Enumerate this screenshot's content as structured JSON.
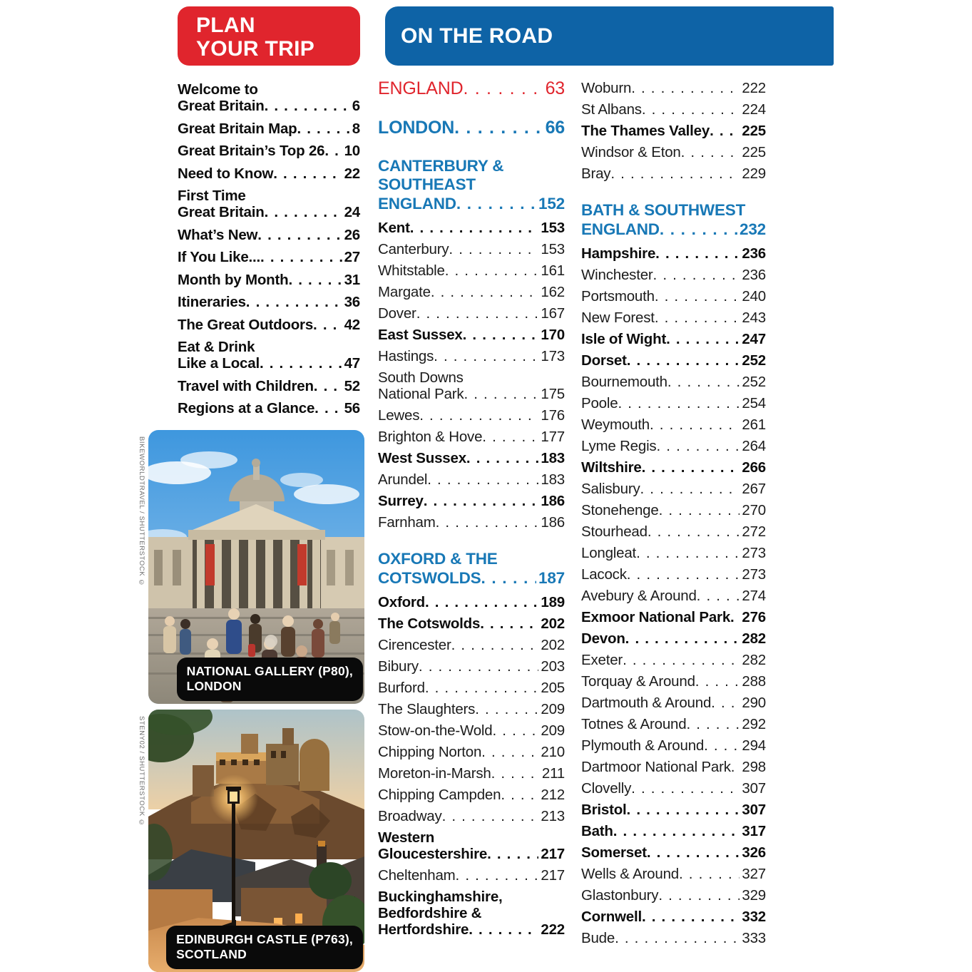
{
  "page": {
    "plan_header": {
      "line1": "PLAN",
      "line2": "YOUR TRIP"
    },
    "road_header": "ON THE ROAD"
  },
  "colors": {
    "red": "#e0252d",
    "header_blue": "#0e63a6",
    "section_blue": "#1878b6",
    "text": "#151515"
  },
  "plan_items": [
    {
      "style": "b",
      "lines": [
        "Welcome to",
        "Great Britain"
      ],
      "page": "6"
    },
    {
      "style": "b",
      "lines": [
        "Great Britain Map"
      ],
      "page": "8"
    },
    {
      "style": "b",
      "lines": [
        "Great Britain’s Top 26"
      ],
      "page": "10"
    },
    {
      "style": "b",
      "lines": [
        "Need to Know"
      ],
      "page": "22"
    },
    {
      "style": "b",
      "lines": [
        "First Time",
        "Great Britain"
      ],
      "page": "24"
    },
    {
      "style": "b",
      "lines": [
        "What’s New"
      ],
      "page": "26"
    },
    {
      "style": "b",
      "lines": [
        "If You Like..."
      ],
      "page": "27"
    },
    {
      "style": "b",
      "lines": [
        "Month by Month"
      ],
      "page": "31"
    },
    {
      "style": "b",
      "lines": [
        "Itineraries"
      ],
      "page": "36"
    },
    {
      "style": "b",
      "lines": [
        "The Great Outdoors"
      ],
      "page": "42"
    },
    {
      "style": "b",
      "lines": [
        "Eat & Drink",
        "Like a Local"
      ],
      "page": "47"
    },
    {
      "style": "b",
      "lines": [
        "Travel with Children"
      ],
      "page": "52"
    },
    {
      "style": "b",
      "lines": [
        "Regions at a Glance"
      ],
      "page": "56"
    }
  ],
  "road_mid": [
    {
      "style": "red",
      "big": true,
      "lines": [
        "ENGLAND"
      ],
      "page": "63"
    },
    {
      "style": "sec",
      "big": true,
      "lines": [
        "LONDON"
      ],
      "page": "66"
    },
    {
      "style": "sec",
      "lines": [
        "CANTERBURY &",
        "SOUTHEAST",
        "ENGLAND"
      ],
      "page": "152"
    },
    {
      "style": "b",
      "lines": [
        "Kent"
      ],
      "page": "153"
    },
    {
      "style": "n",
      "lines": [
        "Canterbury"
      ],
      "page": "153"
    },
    {
      "style": "n",
      "lines": [
        "Whitstable"
      ],
      "page": "161"
    },
    {
      "style": "n",
      "lines": [
        "Margate"
      ],
      "page": "162"
    },
    {
      "style": "n",
      "lines": [
        "Dover"
      ],
      "page": "167"
    },
    {
      "style": "b",
      "lines": [
        "East Sussex"
      ],
      "page": "170"
    },
    {
      "style": "n",
      "lines": [
        "Hastings"
      ],
      "page": "173"
    },
    {
      "style": "n",
      "lines": [
        "South Downs",
        "National Park"
      ],
      "page": "175"
    },
    {
      "style": "n",
      "lines": [
        "Lewes"
      ],
      "page": "176"
    },
    {
      "style": "n",
      "lines": [
        "Brighton & Hove"
      ],
      "page": "177"
    },
    {
      "style": "b",
      "lines": [
        "West Sussex"
      ],
      "page": "183"
    },
    {
      "style": "n",
      "lines": [
        "Arundel"
      ],
      "page": "183"
    },
    {
      "style": "b",
      "lines": [
        "Surrey"
      ],
      "page": "186"
    },
    {
      "style": "n",
      "lines": [
        "Farnham"
      ],
      "page": "186"
    },
    {
      "style": "sec",
      "lines": [
        "OXFORD & THE",
        "COTSWOLDS"
      ],
      "page": "187"
    },
    {
      "style": "b",
      "lines": [
        "Oxford"
      ],
      "page": "189"
    },
    {
      "style": "b",
      "lines": [
        "The Cotswolds"
      ],
      "page": "202"
    },
    {
      "style": "n",
      "lines": [
        "Cirencester"
      ],
      "page": "202"
    },
    {
      "style": "n",
      "lines": [
        "Bibury"
      ],
      "page": "203"
    },
    {
      "style": "n",
      "lines": [
        "Burford"
      ],
      "page": "205"
    },
    {
      "style": "n",
      "lines": [
        "The Slaughters"
      ],
      "page": "209"
    },
    {
      "style": "n",
      "lines": [
        "Stow-on-the-Wold"
      ],
      "page": "209"
    },
    {
      "style": "n",
      "lines": [
        "Chipping Norton"
      ],
      "page": "210"
    },
    {
      "style": "n",
      "lines": [
        "Moreton-in-Marsh"
      ],
      "page": "211"
    },
    {
      "style": "n",
      "lines": [
        "Chipping Campden"
      ],
      "page": "212"
    },
    {
      "style": "n",
      "lines": [
        "Broadway"
      ],
      "page": "213"
    },
    {
      "style": "b",
      "lines": [
        "Western",
        "Gloucestershire"
      ],
      "page": "217"
    },
    {
      "style": "n",
      "lines": [
        "Cheltenham"
      ],
      "page": "217"
    },
    {
      "style": "b",
      "lines": [
        "Buckinghamshire,",
        "Bedfordshire &",
        "Hertfordshire"
      ],
      "page": "222"
    }
  ],
  "road_right": [
    {
      "style": "n",
      "lines": [
        "Woburn"
      ],
      "page": "222"
    },
    {
      "style": "n",
      "lines": [
        "St Albans"
      ],
      "page": "224"
    },
    {
      "style": "b",
      "lines": [
        "The Thames Valley"
      ],
      "page": "225"
    },
    {
      "style": "n",
      "lines": [
        "Windsor & Eton"
      ],
      "page": "225"
    },
    {
      "style": "n",
      "lines": [
        "Bray"
      ],
      "page": "229"
    },
    {
      "style": "sec",
      "lines": [
        "BATH & SOUTHWEST",
        "ENGLAND"
      ],
      "page": "232"
    },
    {
      "style": "b",
      "lines": [
        "Hampshire"
      ],
      "page": "236"
    },
    {
      "style": "n",
      "lines": [
        "Winchester"
      ],
      "page": "236"
    },
    {
      "style": "n",
      "lines": [
        "Portsmouth"
      ],
      "page": "240"
    },
    {
      "style": "n",
      "lines": [
        "New Forest"
      ],
      "page": "243"
    },
    {
      "style": "b",
      "lines": [
        "Isle of Wight"
      ],
      "page": "247"
    },
    {
      "style": "b",
      "lines": [
        "Dorset"
      ],
      "page": "252"
    },
    {
      "style": "n",
      "lines": [
        "Bournemouth"
      ],
      "page": "252"
    },
    {
      "style": "n",
      "lines": [
        "Poole"
      ],
      "page": "254"
    },
    {
      "style": "n",
      "lines": [
        "Weymouth"
      ],
      "page": "261"
    },
    {
      "style": "n",
      "lines": [
        "Lyme Regis"
      ],
      "page": "264"
    },
    {
      "style": "b",
      "lines": [
        "Wiltshire"
      ],
      "page": "266"
    },
    {
      "style": "n",
      "lines": [
        "Salisbury"
      ],
      "page": "267"
    },
    {
      "style": "n",
      "lines": [
        "Stonehenge"
      ],
      "page": "270"
    },
    {
      "style": "n",
      "lines": [
        "Stourhead"
      ],
      "page": "272"
    },
    {
      "style": "n",
      "lines": [
        "Longleat"
      ],
      "page": "273"
    },
    {
      "style": "n",
      "lines": [
        "Lacock"
      ],
      "page": "273"
    },
    {
      "style": "n",
      "lines": [
        "Avebury & Around"
      ],
      "page": "274"
    },
    {
      "style": "b",
      "lines": [
        "Exmoor National Park"
      ],
      "page": "276"
    },
    {
      "style": "b",
      "lines": [
        "Devon"
      ],
      "page": "282"
    },
    {
      "style": "n",
      "lines": [
        "Exeter"
      ],
      "page": "282"
    },
    {
      "style": "n",
      "lines": [
        "Torquay & Around"
      ],
      "page": "288"
    },
    {
      "style": "n",
      "lines": [
        "Dartmouth & Around"
      ],
      "page": "290"
    },
    {
      "style": "n",
      "lines": [
        "Totnes & Around"
      ],
      "page": "292"
    },
    {
      "style": "n",
      "lines": [
        "Plymouth & Around"
      ],
      "page": "294"
    },
    {
      "style": "n",
      "lines": [
        "Dartmoor National Park"
      ],
      "page": "298"
    },
    {
      "style": "n",
      "lines": [
        "Clovelly"
      ],
      "page": "307"
    },
    {
      "style": "b",
      "lines": [
        "Bristol"
      ],
      "page": "307"
    },
    {
      "style": "b",
      "lines": [
        "Bath"
      ],
      "page": "317"
    },
    {
      "style": "b",
      "lines": [
        "Somerset"
      ],
      "page": "326"
    },
    {
      "style": "n",
      "lines": [
        "Wells & Around"
      ],
      "page": "327"
    },
    {
      "style": "n",
      "lines": [
        "Glastonbury"
      ],
      "page": "329"
    },
    {
      "style": "b",
      "lines": [
        "Cornwell"
      ],
      "page": "332"
    },
    {
      "style": "n",
      "lines": [
        "Bude"
      ],
      "page": "333"
    }
  ],
  "photos": [
    {
      "name": "national-gallery",
      "caption_lines": [
        "NATIONAL GALLERY (P80),",
        "LONDON"
      ],
      "credit": "BIKEWORLDTRAVEL / SHUTTERSTOCK ©"
    },
    {
      "name": "edinburgh-castle",
      "caption_lines": [
        "EDINBURGH CASTLE (P763),",
        "SCOTLAND"
      ],
      "credit": "STENY02 / SHUTTERSTOCK ©"
    }
  ]
}
